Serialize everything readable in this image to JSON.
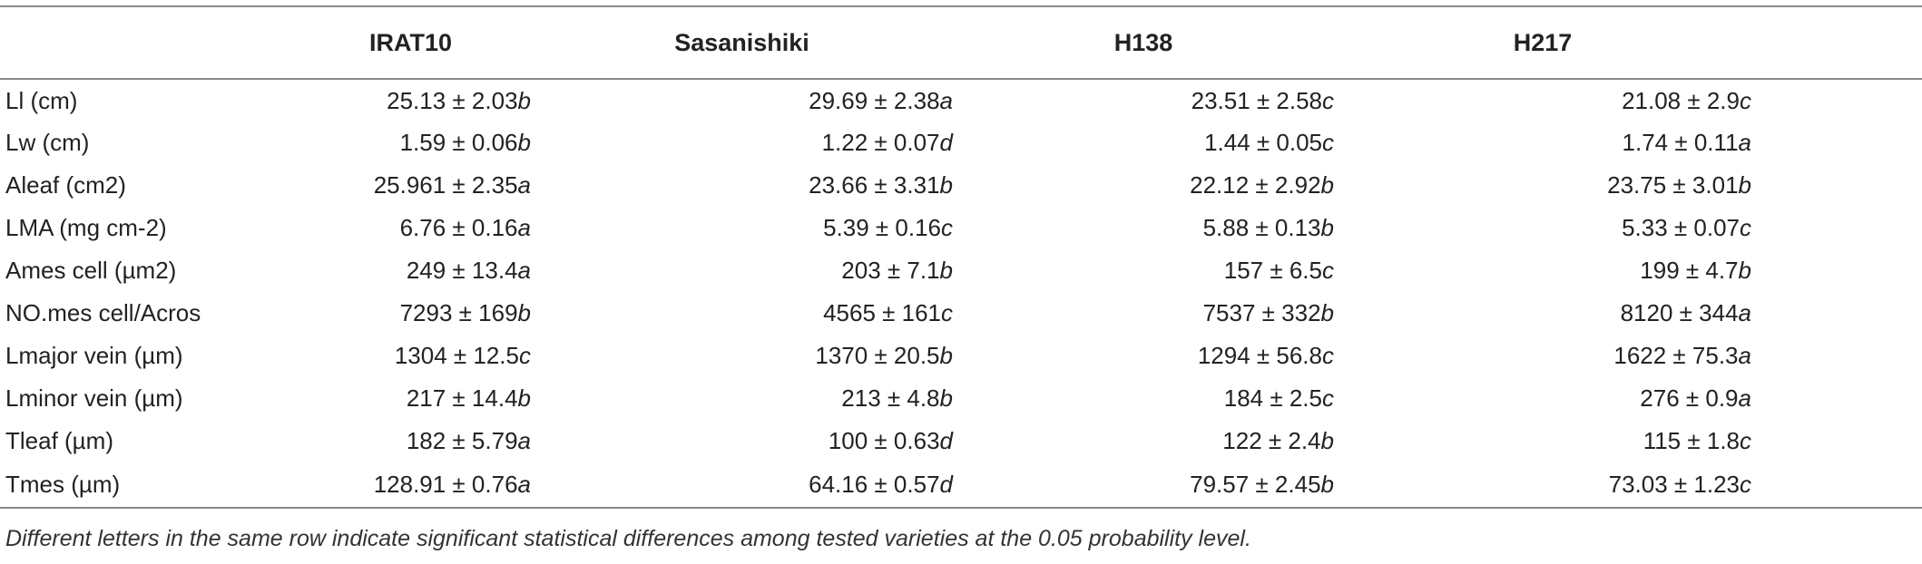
{
  "table": {
    "headers": [
      "",
      "IRAT10",
      "Sasanishiki",
      "H138",
      "H217"
    ],
    "rows": [
      {
        "label": "Ll (cm)",
        "cells": [
          [
            "25.13 ± 2.03",
            "b"
          ],
          [
            "29.69 ± 2.38",
            "a"
          ],
          [
            "23.51 ± 2.58",
            "c"
          ],
          [
            "21.08 ± 2.9",
            "c"
          ]
        ]
      },
      {
        "label": "Lw (cm)",
        "cells": [
          [
            "1.59 ± 0.06",
            "b"
          ],
          [
            "1.22 ± 0.07",
            "d"
          ],
          [
            "1.44 ± 0.05",
            "c"
          ],
          [
            "1.74 ± 0.11",
            "a"
          ]
        ]
      },
      {
        "label": "Aleaf (cm2)",
        "cells": [
          [
            "25.961 ± 2.35",
            "a"
          ],
          [
            "23.66 ± 3.31",
            "b"
          ],
          [
            "22.12 ± 2.92",
            "b"
          ],
          [
            "23.75 ± 3.01",
            "b"
          ]
        ]
      },
      {
        "label": "LMA (mg cm-2)",
        "cells": [
          [
            "6.76 ± 0.16",
            "a"
          ],
          [
            "5.39 ± 0.16",
            "c"
          ],
          [
            "5.88 ± 0.13",
            "b"
          ],
          [
            "5.33 ± 0.07",
            "c"
          ]
        ]
      },
      {
        "label": "Ames cell (µm2)",
        "cells": [
          [
            "249 ± 13.4",
            "a"
          ],
          [
            "203 ± 7.1",
            "b"
          ],
          [
            "157 ± 6.5",
            "c"
          ],
          [
            "199 ± 4.7",
            "b"
          ]
        ]
      },
      {
        "label": "NO.mes cell/Acros",
        "cells": [
          [
            "7293 ± 169",
            "b"
          ],
          [
            "4565 ± 161",
            "c"
          ],
          [
            "7537 ± 332",
            "b"
          ],
          [
            "8120 ± 344",
            "a"
          ]
        ]
      },
      {
        "label": "Lmajor vein (µm)",
        "cells": [
          [
            "1304 ± 12.5",
            "c"
          ],
          [
            "1370 ± 20.5",
            "b"
          ],
          [
            "1294 ± 56.8",
            "c"
          ],
          [
            "1622 ± 75.3",
            "a"
          ]
        ]
      },
      {
        "label": "Lminor vein (µm)",
        "cells": [
          [
            "217 ± 14.4",
            "b"
          ],
          [
            "213 ± 4.8",
            "b"
          ],
          [
            "184 ± 2.5",
            "c"
          ],
          [
            "276 ± 0.9",
            "a"
          ]
        ]
      },
      {
        "label": "Tleaf (µm)",
        "cells": [
          [
            "182 ± 5.79",
            "a"
          ],
          [
            "100 ± 0.63",
            "d"
          ],
          [
            "122 ± 2.4",
            "b"
          ],
          [
            "115 ± 1.8",
            "c"
          ]
        ]
      },
      {
        "label": "Tmes (µm)",
        "cells": [
          [
            "128.91 ± 0.76",
            "a"
          ],
          [
            "64.16 ± 0.57",
            "d"
          ],
          [
            "79.57 ± 2.45",
            "b"
          ],
          [
            "73.03 ± 1.23",
            "c"
          ]
        ]
      }
    ]
  },
  "footnote": "Different letters in the same row indicate significant statistical differences among tested varieties at the 0.05 probability level."
}
